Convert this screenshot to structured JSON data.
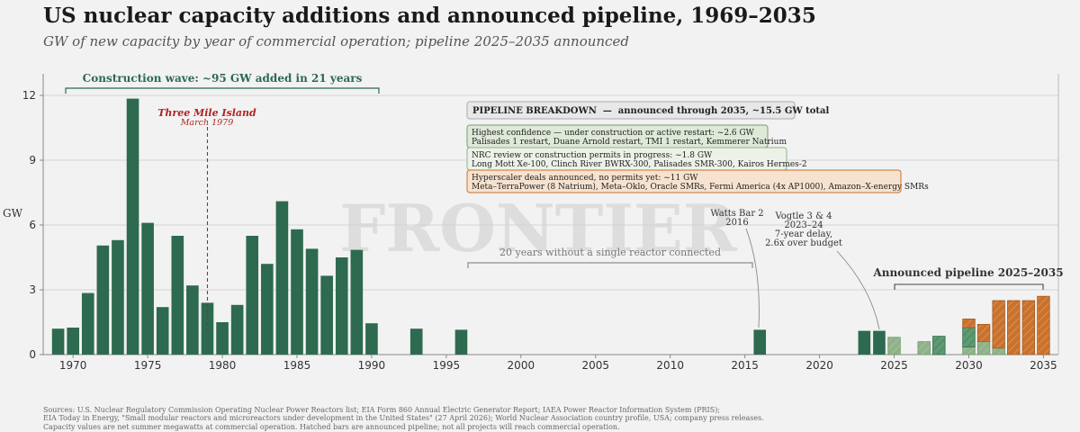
{
  "title": "US nuclear capacity additions and announced pipeline, 1969–2035",
  "subtitle": "GW of new capacity by year of commercial operation; pipeline 2025–2035 announced",
  "watermark": "FRONTIER",
  "sources": [
    "Sources: U.S. Nuclear Regulatory Commission Operating Nuclear Power Reactors list; EIA Form 860 Annual Electric Generator Report; IAEA Power Reactor Information System (PRIS);",
    "EIA Today in Energy, \"Small modular reactors and microreactors under development in the United States\" (27 April 2026); World Nuclear Association country profile, USA; company press releases.",
    "Capacity values are net summer megawatts at commercial operation. Hatched bars are announced pipeline; not all projects will reach commercial operation."
  ],
  "colors": {
    "historical": "#2d6a4f",
    "pipeline_high": "#8fb28a",
    "pipeline_nrc": "#5f9b72",
    "pipeline_hyperscaler": "#c9722e",
    "tmi": "#b22222",
    "background": "#f2f2f2"
  },
  "chart_data": {
    "type": "bar",
    "ylabel": "GW",
    "ylim": [
      0,
      13
    ],
    "yticks": [
      0,
      3,
      6,
      9,
      12
    ],
    "xlim": [
      1968,
      2036
    ],
    "xticks": [
      1970,
      1975,
      1980,
      1985,
      1990,
      1995,
      2000,
      2005,
      2010,
      2015,
      2020,
      2025,
      2030,
      2035
    ],
    "grid": "horizontal",
    "historical": {
      "x": [
        1969,
        1970,
        1971,
        1972,
        1973,
        1974,
        1975,
        1976,
        1977,
        1978,
        1979,
        1980,
        1981,
        1982,
        1983,
        1984,
        1985,
        1986,
        1987,
        1988,
        1989,
        1990,
        1993,
        1996,
        2016,
        2023,
        2024
      ],
      "values": [
        1.2,
        1.25,
        2.85,
        5.05,
        5.3,
        11.85,
        6.1,
        2.2,
        5.5,
        3.2,
        2.4,
        1.5,
        2.3,
        5.5,
        4.2,
        7.1,
        5.8,
        4.9,
        3.65,
        4.5,
        4.85,
        1.45,
        1.2,
        1.15,
        1.15,
        1.1,
        1.1
      ]
    },
    "pipeline": {
      "x": [
        2025,
        2027,
        2028,
        2030,
        2031,
        2032,
        2033,
        2034,
        2035
      ],
      "series": [
        {
          "name": "Highest confidence",
          "values": [
            0.8,
            0.6,
            0.0,
            0.35,
            0.6,
            0.3,
            0,
            0,
            0
          ]
        },
        {
          "name": "NRC review",
          "values": [
            0,
            0,
            0.85,
            0.9,
            0,
            0,
            0,
            0,
            0
          ]
        },
        {
          "name": "Hyperscaler deals",
          "values": [
            0,
            0,
            0,
            0.4,
            0.8,
            2.2,
            2.5,
            2.5,
            2.7
          ]
        }
      ]
    },
    "annotations": {
      "construction_wave": "Construction wave: ~95 GW added in 21 years",
      "tmi_title": "Three Mile Island",
      "tmi_date": "March 1979",
      "gap": "20 years without a single reactor connected",
      "watts_bar": [
        "Watts Bar 2",
        "2016"
      ],
      "vogtle": [
        "Vogtle 3 & 4",
        "2023–24",
        "7-year delay,",
        "2.6x over budget"
      ],
      "pipeline_label": "Announced pipeline 2025–2035"
    },
    "pipeline_breakdown": {
      "header": "PIPELINE BREAKDOWN  —  announced through 2035, ~15.5 GW total",
      "boxes": [
        {
          "line1": "Highest confidence — under construction or active restart: ~2.6 GW",
          "line2": "Palisades 1 restart, Duane Arnold restart, TMI 1 restart, Kemmerer Natrium"
        },
        {
          "line1": "NRC review or construction permits in progress: ~1.8 GW",
          "line2": "Long Mott Xe-100, Clinch River BWRX-300, Palisades SMR-300, Kairos Hermes-2"
        },
        {
          "line1": "Hyperscaler deals announced, no permits yet: ~11 GW",
          "line2": "Meta–TerraPower (8 Natrium), Meta–Oklo, Oracle SMRs, Fermi America (4x AP1000), Amazon–X-energy SMRs"
        }
      ]
    }
  }
}
